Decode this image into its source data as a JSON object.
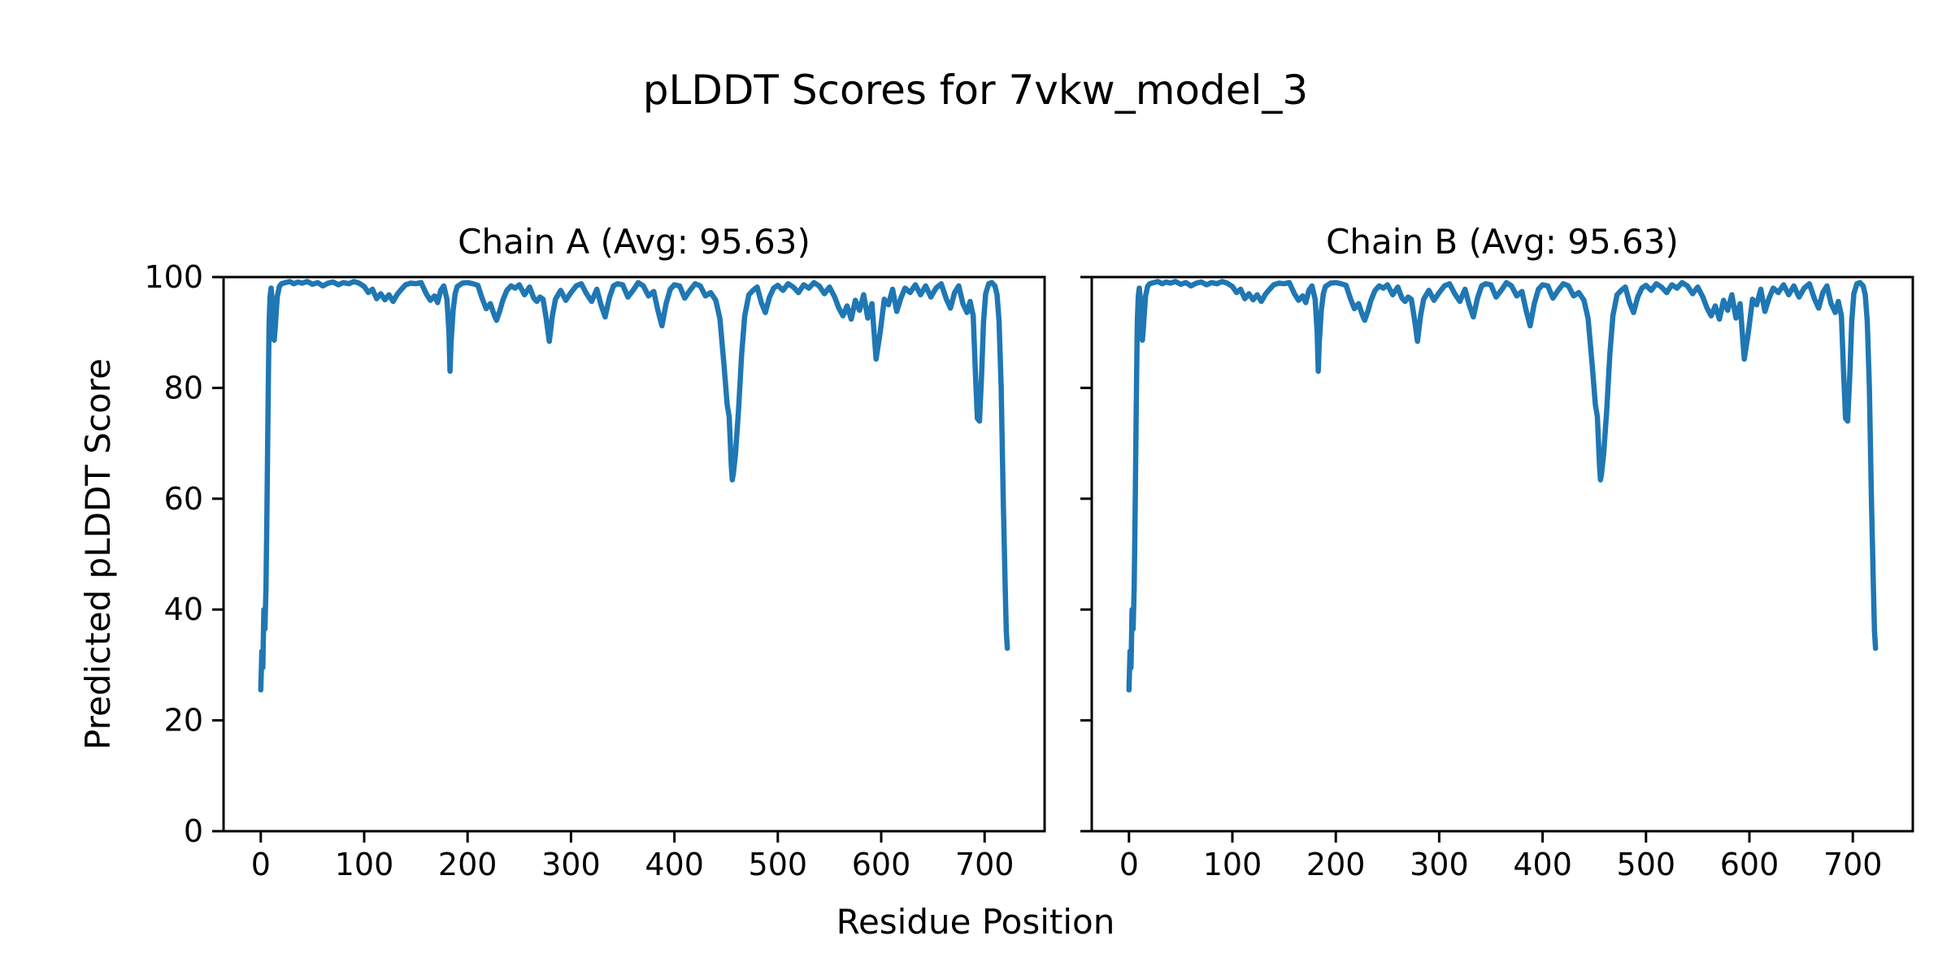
{
  "figure": {
    "title": "pLDDT Scores for 7vkw_model_3",
    "model_name": "7vkw_model_3",
    "xlabel": "Residue Position",
    "ylabel": "Predicted pLDDT Score",
    "background_color": "#ffffff",
    "line_color": "#1f77b4",
    "spine_color": "#000000",
    "text_color": "#000000"
  },
  "chart_data": [
    {
      "type": "line",
      "title": "Chain A (Avg: 95.63)",
      "chain": "A",
      "avg_plddt": "95.63",
      "xlim": [
        -36,
        758
      ],
      "ylim": [
        0,
        100
      ],
      "x_ticks": [
        0,
        100,
        200,
        300,
        400,
        500,
        600,
        700
      ],
      "y_ticks": [
        0,
        20,
        40,
        60,
        80,
        100
      ],
      "y_tick_labels_visible": true,
      "grid": false,
      "legend": null,
      "series": [
        {
          "name": "pLDDT",
          "color": "#1f77b4",
          "x": [
            0,
            1,
            2,
            3,
            4,
            5,
            6,
            7,
            8,
            9,
            10,
            11,
            12,
            13,
            14,
            16,
            18,
            20,
            24,
            28,
            32,
            36,
            40,
            45,
            50,
            55,
            60,
            65,
            70,
            75,
            80,
            85,
            90,
            95,
            100,
            104,
            108,
            112,
            116,
            120,
            124,
            128,
            132,
            136,
            140,
            145,
            150,
            155,
            160,
            164,
            168,
            171,
            174,
            177,
            180,
            182,
            183,
            184,
            186,
            188,
            190,
            195,
            200,
            205,
            210,
            214,
            218,
            222,
            226,
            228,
            231,
            234,
            238,
            242,
            246,
            250,
            255,
            260,
            264,
            267,
            270,
            273,
            276,
            279,
            282,
            285,
            290,
            295,
            300,
            305,
            310,
            315,
            320,
            325,
            329,
            333,
            337,
            341,
            345,
            350,
            355,
            360,
            365,
            370,
            375,
            380,
            384,
            388,
            392,
            396,
            400,
            405,
            410,
            415,
            420,
            425,
            430,
            435,
            440,
            444,
            448,
            451,
            453,
            455,
            456,
            457,
            459,
            462,
            465,
            468,
            472,
            476,
            480,
            484,
            488,
            492,
            496,
            500,
            505,
            510,
            515,
            520,
            525,
            530,
            535,
            540,
            545,
            550,
            555,
            559,
            563,
            567,
            571,
            575,
            579,
            583,
            587,
            591,
            595,
            599,
            603,
            607,
            611,
            615,
            619,
            623,
            628,
            633,
            638,
            643,
            648,
            653,
            658,
            663,
            667,
            671,
            675,
            679,
            683,
            686,
            689,
            691,
            693,
            695,
            697,
            699,
            701,
            704,
            707,
            710,
            712,
            714,
            716,
            718,
            720,
            721,
            722
          ],
          "y": [
            25.5,
            32.5,
            29.5,
            40,
            36.5,
            44,
            58,
            76,
            91.5,
            96.5,
            98,
            96,
            93.5,
            88.6,
            91,
            96.5,
            98.3,
            98.8,
            99,
            99.2,
            98.8,
            99.1,
            98.9,
            99.2,
            98.7,
            99,
            98.4,
            98.9,
            99.1,
            98.6,
            99,
            98.8,
            99.2,
            98.9,
            98.3,
            97.2,
            97.8,
            96.1,
            97,
            95.9,
            96.8,
            95.6,
            96.9,
            97.8,
            98.6,
            98.9,
            98.8,
            99,
            97,
            95.8,
            96.6,
            95.4,
            97.6,
            98.4,
            96,
            90,
            83,
            88,
            94,
            97,
            98.3,
            98.9,
            99,
            98.8,
            98.5,
            96.2,
            94.3,
            95.2,
            93,
            92.2,
            93.8,
            95.8,
            97.6,
            98.4,
            98,
            98.6,
            96.8,
            98.2,
            96.2,
            95.6,
            96.4,
            96,
            92.5,
            88.4,
            93,
            96,
            97.6,
            95.8,
            97.2,
            98.4,
            98.8,
            97,
            95.6,
            97.8,
            95,
            92.8,
            96.2,
            98.4,
            98.8,
            98.6,
            96.4,
            97.6,
            99,
            98.4,
            96.6,
            97.4,
            94,
            91.2,
            95.2,
            97.8,
            98.6,
            98.4,
            96.2,
            97.6,
            98.8,
            98.4,
            96.6,
            97.2,
            95.8,
            92.5,
            84,
            77,
            74.8,
            66,
            63.4,
            64.5,
            68,
            76,
            86,
            93,
            96.8,
            97.6,
            98.2,
            95.4,
            93.6,
            96.4,
            98,
            98.5,
            97.6,
            98.8,
            98.2,
            97.2,
            98.6,
            98,
            99,
            98.4,
            97,
            98.2,
            96.4,
            94.4,
            93,
            94.8,
            92.4,
            95.8,
            94,
            96.8,
            92.6,
            95.2,
            85.2,
            90,
            96,
            95,
            97.8,
            93.8,
            96.2,
            98,
            97.2,
            98.6,
            96.8,
            98.4,
            96.4,
            98,
            98.8,
            96,
            94.4,
            97.2,
            98.4,
            95.2,
            93.6,
            95.6,
            93,
            83,
            74.5,
            74,
            82,
            92,
            97,
            98.8,
            99,
            98.4,
            96.8,
            92,
            80,
            60,
            43,
            36,
            33
          ]
        }
      ]
    },
    {
      "type": "line",
      "title": "Chain B (Avg: 95.63)",
      "chain": "B",
      "avg_plddt": "95.63",
      "xlim": [
        -36,
        758
      ],
      "ylim": [
        0,
        100
      ],
      "x_ticks": [
        0,
        100,
        200,
        300,
        400,
        500,
        600,
        700
      ],
      "y_ticks": [
        0,
        20,
        40,
        60,
        80,
        100
      ],
      "y_tick_labels_visible": false,
      "grid": false,
      "legend": null,
      "series": [
        {
          "name": "pLDDT",
          "color": "#1f77b4",
          "same_as_chart": 0
        }
      ]
    }
  ]
}
